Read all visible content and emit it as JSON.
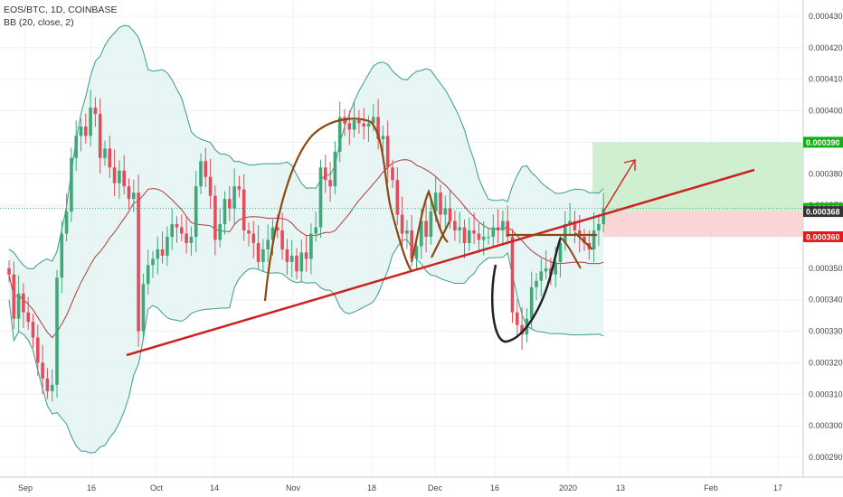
{
  "header": {
    "symbol": "EOS/BTC, 1D, COINBASE",
    "indicator": "BB (20, close, 2)"
  },
  "colors": {
    "up": "#3fa778",
    "down": "#e04d5d",
    "bb_band": "#3b9a8c",
    "bb_basis": "#b33a3a",
    "bb_fill": "#e3f4f2",
    "trendline": "#cc2222",
    "pattern_brown": "#8a4a10",
    "cup_black": "#222222",
    "arrow": "#e02020",
    "target_zone": "#c8ebc8",
    "stop_zone": "#f9d0d0",
    "label_green": "#13b013",
    "label_dark": "#333333",
    "label_red": "#e11a1a",
    "grid": "#eef0f3"
  },
  "chart_data": {
    "type": "candlestick",
    "title": "EOS/BTC, 1D, COINBASE",
    "indicator": "BB (20, close, 2)",
    "y_ticks": [
      "0.000290",
      "0.000300",
      "0.000310",
      "0.000320",
      "0.000330",
      "0.000340",
      "0.000350",
      "0.000360",
      "0.000370",
      "0.000380",
      "0.000390",
      "0.000400",
      "0.000410",
      "0.000420",
      "0.000430"
    ],
    "x_ticks": [
      "Sep",
      "16",
      "Oct",
      "14",
      "Nov",
      "18",
      "Dec",
      "16",
      "2020",
      "13",
      "Feb",
      "17"
    ],
    "ylim": [
      0.000286,
      0.000435
    ],
    "price_labels": [
      {
        "text": "0.000390",
        "value": 0.00039,
        "color_key": "label_green"
      },
      {
        "text": "0.000369",
        "value": 0.000369,
        "color_key": "label_green"
      },
      {
        "text": "0.000368",
        "value": 0.000368,
        "color_key": "label_dark"
      },
      {
        "text": "0.000360",
        "value": 0.00036,
        "color_key": "label_red"
      }
    ],
    "levels": {
      "target": 0.00039,
      "entry": 0.000368,
      "stop": 0.00036,
      "last": 0.000369
    },
    "date_range": [
      "2019-08-26",
      "2020-01-08"
    ],
    "closes": [
      0.000348,
      0.000334,
      0.000342,
      0.000336,
      0.000333,
      0.000328,
      0.00032,
      0.000315,
      0.000311,
      0.000313,
      0.000347,
      0.000361,
      0.000368,
      0.000385,
      0.000392,
      0.000395,
      0.000392,
      0.000401,
      0.000399,
      0.000385,
      0.000388,
      0.000382,
      0.000377,
      0.000381,
      0.000376,
      0.000372,
      0.000374,
      0.00033,
      0.000345,
      0.000351,
      0.000353,
      0.000356,
      0.000354,
      0.00036,
      0.000364,
      0.000363,
      0.000361,
      0.000358,
      0.00036,
      0.000376,
      0.000384,
      0.000379,
      0.000373,
      0.000359,
      0.000364,
      0.000372,
      0.000369,
      0.000376,
      0.000375,
      0.000362,
      0.000361,
      0.000358,
      0.000352,
      0.000356,
      0.000359,
      0.000363,
      0.000362,
      0.000356,
      0.000352,
      0.000354,
      0.000349,
      0.000355,
      0.000353,
      0.000361,
      0.000363,
      0.000382,
      0.000378,
      0.000376,
      0.000387,
      0.000398,
      0.000396,
      0.000394,
      0.000397,
      0.000396,
      0.000395,
      0.000396,
      0.000398,
      0.000391,
      0.000392,
      0.000382,
      0.000378,
      0.000367,
      0.000361,
      0.000362,
      0.000353,
      0.000357,
      0.000365,
      0.00036,
      0.000368,
      0.000374,
      0.000367,
      0.000369,
      0.000365,
      0.000362,
      0.000363,
      0.000358,
      0.000362,
      0.000361,
      0.000359,
      0.00036,
      0.00036,
      0.000363,
      0.000362,
      0.000365,
      0.00036,
      0.000336,
      0.000332,
      0.000329,
      0.000334,
      0.000344,
      0.000346,
      0.000349,
      0.00035,
      0.000348,
      0.000352,
      0.000358,
      0.000364,
      0.000365,
      0.000362,
      0.00036,
      0.000358,
      0.000356,
      0.000362,
      0.000364,
      0.000369
    ]
  }
}
